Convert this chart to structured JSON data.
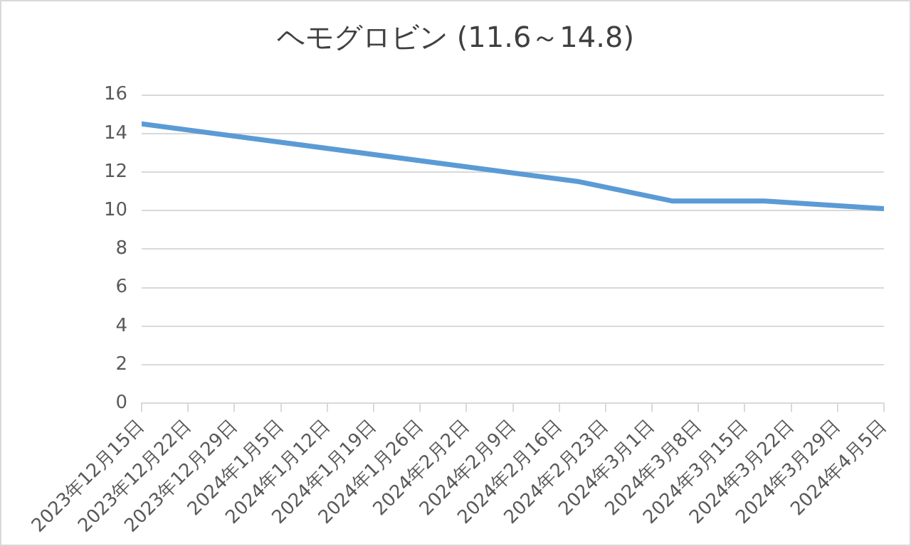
{
  "chart_data": {
    "type": "line",
    "title": "ヘモグロビン  (11.6～14.8)",
    "x": [
      "2023-12-15",
      "2024-02-19",
      "2024-03-04",
      "2024-03-18",
      "2024-04-05"
    ],
    "series": [
      {
        "color": "#5b9bd5",
        "values": [
          14.5,
          11.5,
          10.5,
          10.5,
          10.1
        ]
      }
    ],
    "xlim": [
      "2023-12-15",
      "2024-04-05"
    ],
    "xticks": [
      {
        "value": "2023-12-15",
        "label": "2023年12月15日"
      },
      {
        "value": "2023-12-22",
        "label": "2023年12月22日"
      },
      {
        "value": "2023-12-29",
        "label": "2023年12月29日"
      },
      {
        "value": "2024-01-05",
        "label": "2024年1月5日"
      },
      {
        "value": "2024-01-12",
        "label": "2024年1月12日"
      },
      {
        "value": "2024-01-19",
        "label": "2024年1月19日"
      },
      {
        "value": "2024-01-26",
        "label": "2024年1月26日"
      },
      {
        "value": "2024-02-02",
        "label": "2024年2月2日"
      },
      {
        "value": "2024-02-09",
        "label": "2024年2月9日"
      },
      {
        "value": "2024-02-16",
        "label": "2024年2月16日"
      },
      {
        "value": "2024-02-23",
        "label": "2024年2月23日"
      },
      {
        "value": "2024-03-01",
        "label": "2024年3月1日"
      },
      {
        "value": "2024-03-08",
        "label": "2024年3月8日"
      },
      {
        "value": "2024-03-15",
        "label": "2024年3月15日"
      },
      {
        "value": "2024-03-22",
        "label": "2024年3月22日"
      },
      {
        "value": "2024-03-29",
        "label": "2024年3月29日"
      },
      {
        "value": "2024-04-05",
        "label": "2024年4月5日"
      }
    ],
    "ylim": [
      0,
      16
    ],
    "yticks": [
      0,
      2,
      4,
      6,
      8,
      10,
      12,
      14,
      16
    ],
    "grid": "y",
    "legend": false,
    "marker": "none",
    "line_style": "solid"
  }
}
